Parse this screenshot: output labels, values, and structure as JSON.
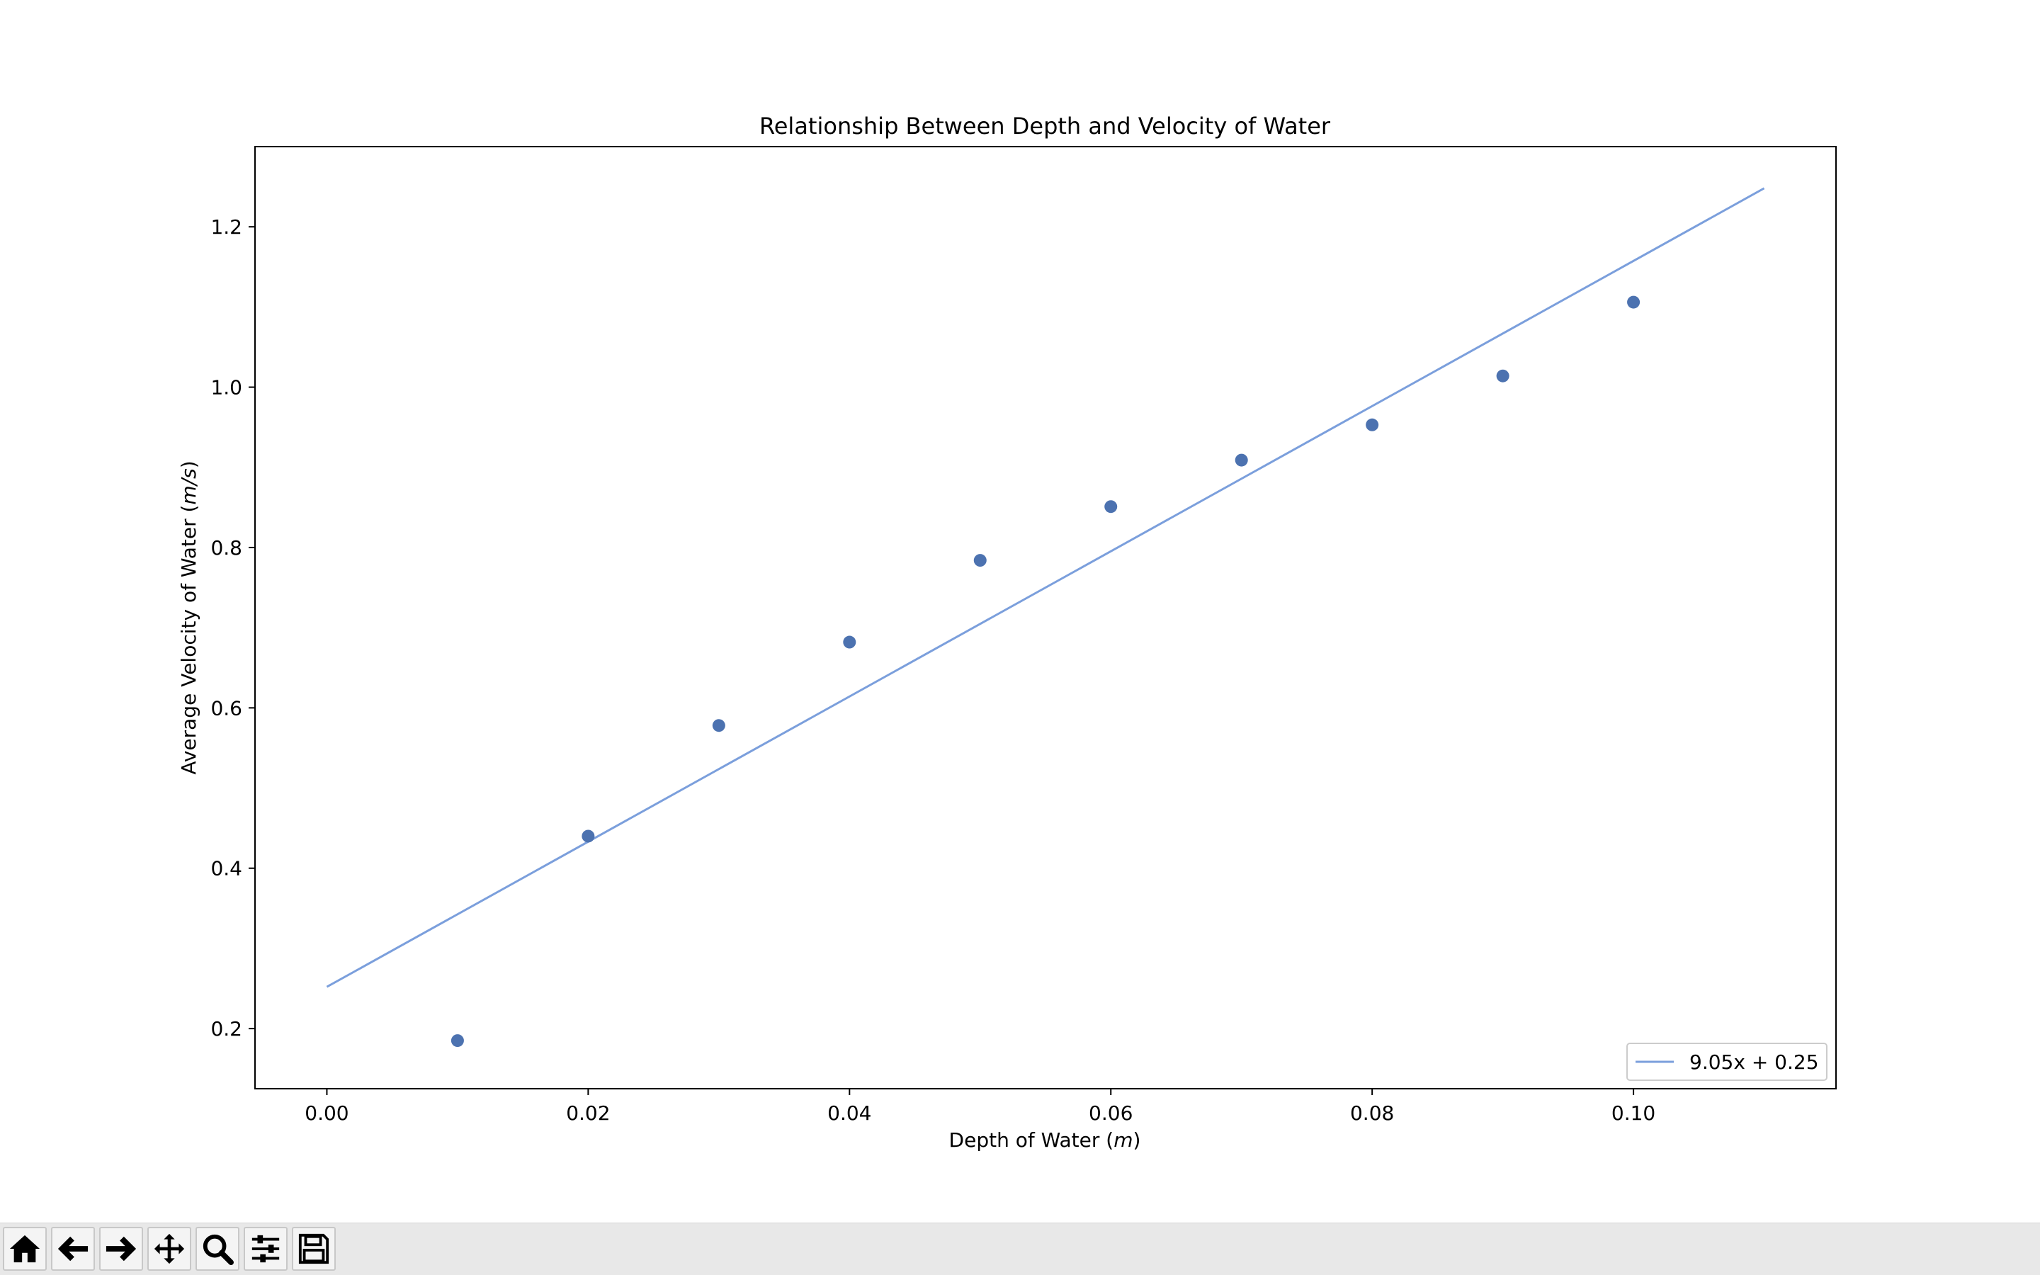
{
  "chart_data": {
    "type": "scatter",
    "title": "Relationship Between Depth and Velocity of Water",
    "xlabel": "Depth of Water (",
    "xlabel_unit": "m",
    "xlabel_close": ")",
    "ylabel": "Average Velocity of Water (",
    "ylabel_unit": "m/s",
    "ylabel_close": ")",
    "xlim": [
      -0.0055,
      0.1155
    ],
    "ylim": [
      0.125,
      1.3
    ],
    "xticks": [
      0.0,
      0.02,
      0.04,
      0.06,
      0.08,
      0.1
    ],
    "xtick_labels": [
      "0.00",
      "0.02",
      "0.04",
      "0.06",
      "0.08",
      "0.10"
    ],
    "yticks": [
      0.2,
      0.4,
      0.6,
      0.8,
      1.0,
      1.2
    ],
    "ytick_labels": [
      "0.2",
      "0.4",
      "0.6",
      "0.8",
      "1.0",
      "1.2"
    ],
    "grid": false,
    "series": [
      {
        "kind": "scatter",
        "color": "#4c72b0",
        "x": [
          0.01,
          0.02,
          0.03,
          0.04,
          0.05,
          0.06,
          0.07,
          0.08,
          0.09,
          0.1
        ],
        "y": [
          0.185,
          0.44,
          0.578,
          0.682,
          0.784,
          0.851,
          0.909,
          0.953,
          1.014,
          1.106
        ]
      },
      {
        "kind": "line",
        "name": "9.05x + 0.25",
        "color": "#7b9fdc",
        "x": [
          0.0,
          0.11
        ],
        "y": [
          0.252,
          1.248
        ]
      }
    ],
    "legend": {
      "position": "lower-right",
      "entries": [
        "9.05x + 0.25"
      ]
    }
  },
  "toolbar": {
    "buttons": [
      {
        "name": "home-button",
        "icon": "home-icon"
      },
      {
        "name": "back-button",
        "icon": "arrow-left-icon"
      },
      {
        "name": "forward-button",
        "icon": "arrow-right-icon"
      },
      {
        "name": "pan-button",
        "icon": "move-icon"
      },
      {
        "name": "zoom-button",
        "icon": "magnifier-icon"
      },
      {
        "name": "configure-subplots-button",
        "icon": "sliders-icon"
      },
      {
        "name": "save-button",
        "icon": "floppy-disk-icon"
      }
    ]
  }
}
